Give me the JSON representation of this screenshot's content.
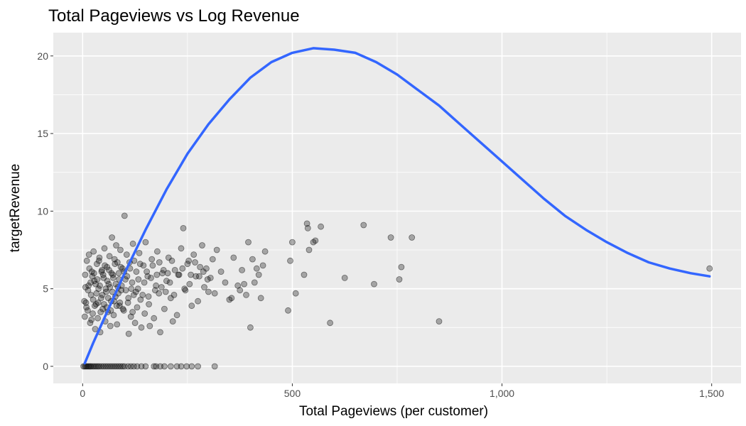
{
  "chart_data": {
    "type": "scatter",
    "title": "Total Pageviews vs Log Revenue",
    "xlabel": "Total Pageviews (per customer)",
    "ylabel": "targetRevenue",
    "xlim": [
      -70,
      1570
    ],
    "ylim": [
      -1.1,
      21.5
    ],
    "x_ticks": [
      0,
      500,
      1000,
      1500
    ],
    "x_tick_labels": [
      "0",
      "500",
      "1,000",
      "1,500"
    ],
    "x_minor_ticks": [
      250,
      750,
      1250
    ],
    "y_ticks": [
      0,
      5,
      10,
      15,
      20
    ],
    "y_tick_labels": [
      "0",
      "5",
      "10",
      "15",
      "20"
    ],
    "y_minor_ticks": [
      2.5,
      7.5,
      12.5,
      17.5
    ],
    "grid": true,
    "legend": "none",
    "colors": {
      "panel": "#ebebeb",
      "grid": "#ffffff",
      "points": "#000000",
      "smooth_line": "#3366ff"
    },
    "series": [
      {
        "kind": "points",
        "opacity": 0.3,
        "points": [
          [
            2,
            0
          ],
          [
            5,
            0
          ],
          [
            8,
            0
          ],
          [
            11,
            0
          ],
          [
            14,
            0
          ],
          [
            17,
            0
          ],
          [
            20,
            0
          ],
          [
            24,
            0
          ],
          [
            28,
            0
          ],
          [
            32,
            0
          ],
          [
            36,
            0
          ],
          [
            40,
            0
          ],
          [
            45,
            0
          ],
          [
            50,
            0
          ],
          [
            55,
            0
          ],
          [
            60,
            0
          ],
          [
            65,
            0
          ],
          [
            70,
            0
          ],
          [
            75,
            0
          ],
          [
            80,
            0
          ],
          [
            85,
            0
          ],
          [
            90,
            0
          ],
          [
            95,
            0
          ],
          [
            100,
            0
          ],
          [
            108,
            0
          ],
          [
            115,
            0
          ],
          [
            122,
            0
          ],
          [
            130,
            0
          ],
          [
            140,
            0
          ],
          [
            150,
            0
          ],
          [
            170,
            0
          ],
          [
            175,
            0
          ],
          [
            185,
            0
          ],
          [
            195,
            0
          ],
          [
            210,
            0
          ],
          [
            225,
            0
          ],
          [
            235,
            0
          ],
          [
            248,
            0
          ],
          [
            260,
            0
          ],
          [
            275,
            0
          ],
          [
            315,
            0
          ],
          [
            5,
            3.2
          ],
          [
            6,
            5.9
          ],
          [
            8,
            4.1
          ],
          [
            10,
            6.8
          ],
          [
            12,
            3.6
          ],
          [
            14,
            5.2
          ],
          [
            15,
            7.2
          ],
          [
            18,
            2.8
          ],
          [
            20,
            4.6
          ],
          [
            22,
            6.1
          ],
          [
            24,
            3.4
          ],
          [
            26,
            7.4
          ],
          [
            28,
            5.5
          ],
          [
            30,
            2.4
          ],
          [
            32,
            4.0
          ],
          [
            34,
            6.6
          ],
          [
            36,
            3.1
          ],
          [
            38,
            5.0
          ],
          [
            40,
            7.0
          ],
          [
            42,
            2.2
          ],
          [
            44,
            4.4
          ],
          [
            46,
            6.2
          ],
          [
            48,
            3.7
          ],
          [
            50,
            5.7
          ],
          [
            52,
            7.6
          ],
          [
            54,
            2.9
          ],
          [
            56,
            4.8
          ],
          [
            58,
            6.4
          ],
          [
            60,
            3.5
          ],
          [
            62,
            5.3
          ],
          [
            64,
            7.1
          ],
          [
            66,
            2.6
          ],
          [
            68,
            4.2
          ],
          [
            70,
            8.3
          ],
          [
            72,
            5.9
          ],
          [
            74,
            3.3
          ],
          [
            76,
            6.9
          ],
          [
            78,
            4.5
          ],
          [
            80,
            7.8
          ],
          [
            82,
            2.7
          ],
          [
            84,
            5.1
          ],
          [
            86,
            6.0
          ],
          [
            88,
            3.9
          ],
          [
            90,
            7.5
          ],
          [
            92,
            4.9
          ],
          [
            95,
            6.3
          ],
          [
            98,
            3.6
          ],
          [
            100,
            9.7
          ],
          [
            102,
            5.6
          ],
          [
            105,
            7.2
          ],
          [
            108,
            4.1
          ],
          [
            110,
            2.1
          ],
          [
            112,
            6.7
          ],
          [
            115,
            3.2
          ],
          [
            118,
            5.4
          ],
          [
            120,
            7.9
          ],
          [
            122,
            4.6
          ],
          [
            125,
            2.8
          ],
          [
            128,
            6.1
          ],
          [
            130,
            3.8
          ],
          [
            132,
            5.0
          ],
          [
            135,
            7.3
          ],
          [
            138,
            4.3
          ],
          [
            140,
            2.5
          ],
          [
            145,
            6.5
          ],
          [
            148,
            3.4
          ],
          [
            150,
            8.0
          ],
          [
            155,
            5.8
          ],
          [
            158,
            4.0
          ],
          [
            160,
            2.6
          ],
          [
            165,
            6.9
          ],
          [
            170,
            3.1
          ],
          [
            175,
            5.2
          ],
          [
            178,
            7.4
          ],
          [
            182,
            4.7
          ],
          [
            185,
            2.2
          ],
          [
            190,
            6.0
          ],
          [
            195,
            3.7
          ],
          [
            200,
            5.5
          ],
          [
            205,
            7.0
          ],
          [
            210,
            4.4
          ],
          [
            215,
            2.9
          ],
          [
            220,
            6.2
          ],
          [
            225,
            3.3
          ],
          [
            230,
            5.9
          ],
          [
            235,
            7.6
          ],
          [
            240,
            8.9
          ],
          [
            245,
            4.9
          ],
          [
            250,
            6.6
          ],
          [
            255,
            5.3
          ],
          [
            260,
            3.9
          ],
          [
            265,
            7.2
          ],
          [
            270,
            5.8
          ],
          [
            275,
            4.2
          ],
          [
            280,
            6.4
          ],
          [
            285,
            7.8
          ],
          [
            290,
            5.1
          ],
          [
            295,
            6.3
          ],
          [
            300,
            4.8
          ],
          [
            305,
            5.7
          ],
          [
            310,
            6.9
          ],
          [
            315,
            4.7
          ],
          [
            320,
            7.5
          ],
          [
            330,
            6.1
          ],
          [
            340,
            5.4
          ],
          [
            350,
            4.3
          ],
          [
            355,
            4.4
          ],
          [
            360,
            7.0
          ],
          [
            370,
            5.2
          ],
          [
            375,
            4.9
          ],
          [
            380,
            6.2
          ],
          [
            385,
            5.3
          ],
          [
            390,
            4.6
          ],
          [
            395,
            8.0
          ],
          [
            400,
            2.5
          ],
          [
            405,
            6.9
          ],
          [
            410,
            5.4
          ],
          [
            415,
            6.3
          ],
          [
            420,
            5.9
          ],
          [
            425,
            4.4
          ],
          [
            430,
            6.5
          ],
          [
            435,
            7.4
          ],
          [
            490,
            3.6
          ],
          [
            495,
            6.8
          ],
          [
            500,
            8.0
          ],
          [
            508,
            4.7
          ],
          [
            528,
            5.9
          ],
          [
            535,
            9.2
          ],
          [
            537,
            8.9
          ],
          [
            540,
            7.5
          ],
          [
            550,
            8.0
          ],
          [
            555,
            8.1
          ],
          [
            568,
            9.0
          ],
          [
            590,
            2.8
          ],
          [
            625,
            5.7
          ],
          [
            670,
            9.1
          ],
          [
            695,
            5.3
          ],
          [
            735,
            8.3
          ],
          [
            755,
            5.6
          ],
          [
            760,
            6.4
          ],
          [
            785,
            8.3
          ],
          [
            850,
            2.9
          ],
          [
            1495,
            6.3
          ],
          [
            4,
            4.2
          ],
          [
            7,
            5.1
          ],
          [
            9,
            3.8
          ],
          [
            13,
            4.9
          ],
          [
            16,
            6.3
          ],
          [
            19,
            5.4
          ],
          [
            21,
            3.0
          ],
          [
            23,
            5.8
          ],
          [
            25,
            4.3
          ],
          [
            27,
            6.0
          ],
          [
            29,
            3.9
          ],
          [
            31,
            5.3
          ],
          [
            33,
            4.7
          ],
          [
            35,
            5.6
          ],
          [
            37,
            4.1
          ],
          [
            39,
            6.8
          ],
          [
            41,
            5.2
          ],
          [
            43,
            3.5
          ],
          [
            45,
            6.1
          ],
          [
            47,
            4.6
          ],
          [
            49,
            5.9
          ],
          [
            51,
            4.0
          ],
          [
            53,
            6.5
          ],
          [
            55,
            5.0
          ],
          [
            57,
            3.8
          ],
          [
            59,
            5.5
          ],
          [
            61,
            4.4
          ],
          [
            63,
            6.2
          ],
          [
            65,
            5.1
          ],
          [
            67,
            3.6
          ],
          [
            69,
            6.0
          ],
          [
            71,
            4.8
          ],
          [
            73,
            5.7
          ],
          [
            75,
            4.2
          ],
          [
            77,
            6.6
          ],
          [
            79,
            5.3
          ],
          [
            81,
            3.9
          ],
          [
            83,
            6.7
          ],
          [
            85,
            4.7
          ],
          [
            87,
            5.6
          ],
          [
            89,
            4.1
          ],
          [
            91,
            6.4
          ],
          [
            93,
            5.2
          ],
          [
            96,
            3.7
          ],
          [
            99,
            6.1
          ],
          [
            103,
            4.9
          ],
          [
            106,
            5.8
          ],
          [
            109,
            4.4
          ],
          [
            113,
            6.3
          ],
          [
            116,
            5.0
          ],
          [
            119,
            3.5
          ],
          [
            123,
            6.8
          ],
          [
            127,
            4.8
          ],
          [
            133,
            5.6
          ],
          [
            137,
            6.6
          ],
          [
            143,
            4.6
          ],
          [
            147,
            5.4
          ],
          [
            153,
            6.1
          ],
          [
            157,
            4.5
          ],
          [
            163,
            5.7
          ],
          [
            167,
            6.5
          ],
          [
            173,
            4.9
          ],
          [
            177,
            5.9
          ],
          [
            183,
            6.7
          ],
          [
            188,
            5.1
          ],
          [
            193,
            6.2
          ],
          [
            198,
            4.8
          ],
          [
            203,
            6.0
          ],
          [
            208,
            5.4
          ],
          [
            213,
            6.8
          ],
          [
            218,
            4.6
          ],
          [
            228,
            5.9
          ],
          [
            238,
            6.3
          ],
          [
            243,
            5.0
          ],
          [
            253,
            6.8
          ],
          [
            258,
            5.9
          ],
          [
            268,
            6.7
          ],
          [
            278,
            5.8
          ],
          [
            288,
            6.1
          ],
          [
            298,
            5.6
          ]
        ]
      },
      {
        "kind": "smooth_line",
        "points": [
          [
            5,
            0.2
          ],
          [
            25,
            1.5
          ],
          [
            50,
            3.0
          ],
          [
            75,
            4.5
          ],
          [
            100,
            6.0
          ],
          [
            150,
            8.8
          ],
          [
            200,
            11.4
          ],
          [
            250,
            13.7
          ],
          [
            300,
            15.6
          ],
          [
            350,
            17.2
          ],
          [
            400,
            18.6
          ],
          [
            450,
            19.6
          ],
          [
            500,
            20.2
          ],
          [
            550,
            20.5
          ],
          [
            600,
            20.4
          ],
          [
            650,
            20.2
          ],
          [
            700,
            19.6
          ],
          [
            750,
            18.8
          ],
          [
            800,
            17.8
          ],
          [
            850,
            16.8
          ],
          [
            900,
            15.6
          ],
          [
            950,
            14.4
          ],
          [
            1000,
            13.2
          ],
          [
            1050,
            12.0
          ],
          [
            1100,
            10.8
          ],
          [
            1150,
            9.7
          ],
          [
            1200,
            8.8
          ],
          [
            1250,
            8.0
          ],
          [
            1300,
            7.3
          ],
          [
            1350,
            6.7
          ],
          [
            1400,
            6.3
          ],
          [
            1450,
            6.0
          ],
          [
            1495,
            5.8
          ]
        ]
      }
    ]
  }
}
